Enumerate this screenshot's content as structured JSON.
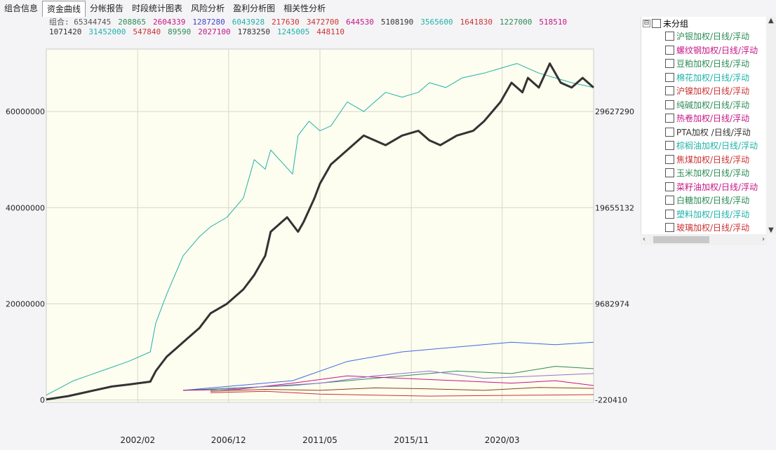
{
  "tabs": [
    {
      "label": "组合信息",
      "active": false
    },
    {
      "label": "资金曲线",
      "active": true
    },
    {
      "label": "分帐报告",
      "active": false
    },
    {
      "label": "时段统计图表",
      "active": false
    },
    {
      "label": "风险分析",
      "active": false
    },
    {
      "label": "盈利分析图",
      "active": false
    },
    {
      "label": "相关性分析",
      "active": false
    }
  ],
  "legend": {
    "row1": [
      {
        "text": "组合: 65344745",
        "color": "#555555"
      },
      {
        "text": "208865",
        "color": "#2e8b57"
      },
      {
        "text": "2604339",
        "color": "#c71585"
      },
      {
        "text": "1287280",
        "color": "#4444cc"
      },
      {
        "text": "6043928",
        "color": "#20b2aa"
      },
      {
        "text": "217630",
        "color": "#cc3333"
      },
      {
        "text": "3472700",
        "color": "#cc3333"
      },
      {
        "text": "644530",
        "color": "#c71585"
      },
      {
        "text": "5108190",
        "color": "#333333"
      },
      {
        "text": "3565600",
        "color": "#20b2aa"
      },
      {
        "text": "1641830",
        "color": "#cc3333"
      },
      {
        "text": "1227000",
        "color": "#2e8b57"
      },
      {
        "text": "518510",
        "color": "#c71585"
      }
    ],
    "row2": [
      {
        "text": "1071420",
        "color": "#333333"
      },
      {
        "text": "31452000",
        "color": "#20b2aa"
      },
      {
        "text": "547840",
        "color": "#cc3333"
      },
      {
        "text": "89590",
        "color": "#2e8b57"
      },
      {
        "text": "2027100",
        "color": "#c71585"
      },
      {
        "text": "1783250",
        "color": "#333333"
      },
      {
        "text": "1245005",
        "color": "#20b2aa"
      },
      {
        "text": "448110",
        "color": "#cc3333"
      }
    ]
  },
  "tree": {
    "root_label": "未分组",
    "expander": "⊟",
    "items": [
      {
        "label": "沪银加权/日线/浮动",
        "color": "#2e8b57"
      },
      {
        "label": "螺纹钢加权/日线/浮动",
        "color": "#c71585"
      },
      {
        "label": "豆粕加权/日线/浮动",
        "color": "#2e8b57"
      },
      {
        "label": "棉花加权/日线/浮动",
        "color": "#20b2aa"
      },
      {
        "label": "沪镍加权/日线/浮动",
        "color": "#cc3333"
      },
      {
        "label": "纯碱加权/日线/浮动",
        "color": "#2e8b57"
      },
      {
        "label": "热卷加权/日线/浮动",
        "color": "#c71585"
      },
      {
        "label": "PTA加权 /日线/浮动",
        "color": "#333333"
      },
      {
        "label": "棕榈油加权/日线/浮动",
        "color": "#20b2aa"
      },
      {
        "label": "焦煤加权/日线/浮动",
        "color": "#cc3333"
      },
      {
        "label": "玉米加权/日线/浮动",
        "color": "#2e8b57"
      },
      {
        "label": "菜籽油加权/日线/浮动",
        "color": "#c71585"
      },
      {
        "label": "白糖加权/日线/浮动",
        "color": "#2e8b57"
      },
      {
        "label": "塑料加权/日线/浮动",
        "color": "#20b2aa"
      },
      {
        "label": "玻璃加权/日线/浮动",
        "color": "#cc3333"
      }
    ]
  },
  "chart_data": {
    "type": "line",
    "title": "",
    "x_ticks": [
      "2002/02",
      "2006/12",
      "2011/05",
      "2015/11",
      "2020/03"
    ],
    "x_tick_pos": [
      0.167,
      0.333,
      0.5,
      0.667,
      0.833
    ],
    "y_left": {
      "ticks": [
        0,
        20000000,
        40000000,
        60000000
      ],
      "tick_labels": [
        "0",
        "20000000",
        "40000000",
        "60000000"
      ],
      "range": [
        -500000,
        73000000
      ]
    },
    "y_right": {
      "ticks": [
        "-220410",
        "9682974",
        "19655132",
        "29627290"
      ]
    },
    "grid": true,
    "background": "#fdfdf0",
    "series": [
      {
        "color": "#333333",
        "axis": "left",
        "width": 3,
        "x": [
          0,
          0.04,
          0.08,
          0.12,
          0.15,
          0.19,
          0.2,
          0.22,
          0.25,
          0.28,
          0.3,
          0.33,
          0.36,
          0.38,
          0.4,
          0.41,
          0.44,
          0.46,
          0.47,
          0.49,
          0.5,
          0.52,
          0.55,
          0.58,
          0.6,
          0.62,
          0.65,
          0.68,
          0.7,
          0.72,
          0.75,
          0.78,
          0.8,
          0.83,
          0.85,
          0.87,
          0.88,
          0.9,
          0.92,
          0.94,
          0.96,
          0.98,
          1.0
        ],
        "y": [
          100000,
          800000,
          1800000,
          2800000,
          3200000,
          3800000,
          6000000,
          9000000,
          12000000,
          15000000,
          18000000,
          20000000,
          23000000,
          26000000,
          30000000,
          35000000,
          38000000,
          35000000,
          37000000,
          42000000,
          45000000,
          49000000,
          52000000,
          55000000,
          54000000,
          53000000,
          55000000,
          56000000,
          54000000,
          53000000,
          55000000,
          56000000,
          58000000,
          62000000,
          66000000,
          64000000,
          67000000,
          65000000,
          70000000,
          66000000,
          65000000,
          67000000,
          65000000
        ]
      },
      {
        "color": "#20b2aa",
        "axis": "left",
        "width": 1,
        "x": [
          0,
          0.05,
          0.1,
          0.15,
          0.19,
          0.2,
          0.22,
          0.25,
          0.28,
          0.3,
          0.33,
          0.36,
          0.38,
          0.4,
          0.41,
          0.45,
          0.46,
          0.48,
          0.5,
          0.52,
          0.55,
          0.58,
          0.62,
          0.65,
          0.68,
          0.7,
          0.73,
          0.76,
          0.8,
          0.83,
          0.86,
          0.88,
          0.9,
          0.93,
          0.96,
          1.0
        ],
        "y": [
          1000000,
          4000000,
          6000000,
          8000000,
          10000000,
          16000000,
          22000000,
          30000000,
          34000000,
          36000000,
          38000000,
          42000000,
          50000000,
          48000000,
          52000000,
          47000000,
          55000000,
          58000000,
          56000000,
          57000000,
          62000000,
          60000000,
          64000000,
          63000000,
          64000000,
          66000000,
          65000000,
          67000000,
          68000000,
          69000000,
          70000000,
          69000000,
          68000000,
          67000000,
          66000000,
          65000000
        ]
      },
      {
        "color": "#4169e1",
        "axis": "left",
        "width": 1,
        "x": [
          0.25,
          0.35,
          0.45,
          0.55,
          0.65,
          0.75,
          0.85,
          0.93,
          1.0
        ],
        "y": [
          2000000,
          3000000,
          4000000,
          8000000,
          10000000,
          11000000,
          12000000,
          11500000,
          12000000
        ]
      },
      {
        "color": "#2e8b57",
        "axis": "left",
        "width": 1,
        "x": [
          0.25,
          0.35,
          0.45,
          0.55,
          0.65,
          0.75,
          0.85,
          0.93,
          1.0
        ],
        "y": [
          2000000,
          2500000,
          3000000,
          4000000,
          5000000,
          6000000,
          5500000,
          7000000,
          6500000
        ]
      },
      {
        "color": "#c71585",
        "axis": "left",
        "width": 1,
        "x": [
          0.25,
          0.35,
          0.45,
          0.55,
          0.65,
          0.75,
          0.85,
          0.93,
          1.0
        ],
        "y": [
          2000000,
          2200000,
          3500000,
          5000000,
          4500000,
          4000000,
          3500000,
          4000000,
          3000000
        ]
      },
      {
        "color": "#cc3333",
        "axis": "left",
        "width": 1,
        "x": [
          0.3,
          0.4,
          0.5,
          0.6,
          0.7,
          0.8,
          0.9,
          1.0
        ],
        "y": [
          1500000,
          1800000,
          1200000,
          1000000,
          800000,
          900000,
          1000000,
          1100000
        ]
      },
      {
        "color": "#8b4513",
        "axis": "left",
        "width": 1,
        "x": [
          0.3,
          0.4,
          0.5,
          0.6,
          0.7,
          0.8,
          0.9,
          1.0
        ],
        "y": [
          1800000,
          2200000,
          2000000,
          2500000,
          2300000,
          2000000,
          2600000,
          2400000
        ]
      },
      {
        "color": "#9370db",
        "axis": "left",
        "width": 1,
        "x": [
          0.3,
          0.4,
          0.5,
          0.6,
          0.7,
          0.8,
          0.9,
          1.0
        ],
        "y": [
          2000000,
          2800000,
          3500000,
          5000000,
          6000000,
          4500000,
          5000000,
          5500000
        ]
      }
    ]
  }
}
